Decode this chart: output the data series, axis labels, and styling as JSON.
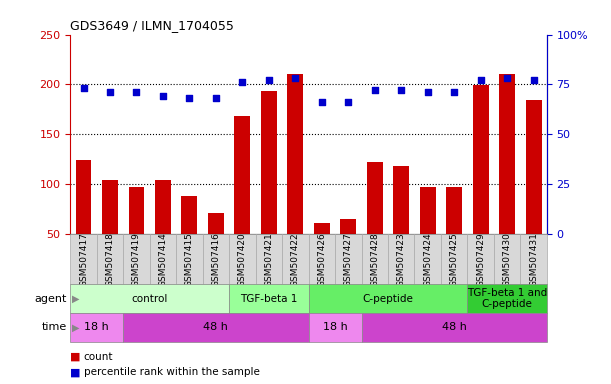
{
  "title": "GDS3649 / ILMN_1704055",
  "samples": [
    "GSM507417",
    "GSM507418",
    "GSM507419",
    "GSM507414",
    "GSM507415",
    "GSM507416",
    "GSM507420",
    "GSM507421",
    "GSM507422",
    "GSM507426",
    "GSM507427",
    "GSM507428",
    "GSM507423",
    "GSM507424",
    "GSM507425",
    "GSM507429",
    "GSM507430",
    "GSM507431"
  ],
  "counts": [
    124,
    104,
    97,
    104,
    88,
    71,
    168,
    193,
    210,
    61,
    65,
    122,
    118,
    97,
    97,
    199,
    210,
    184
  ],
  "percentiles": [
    73,
    71,
    71,
    69,
    68,
    68,
    76,
    77,
    78,
    66,
    66,
    72,
    72,
    71,
    71,
    77,
    78,
    77
  ],
  "bar_color": "#cc0000",
  "dot_color": "#0000cc",
  "ylim_left": [
    50,
    250
  ],
  "ylim_right": [
    0,
    100
  ],
  "yticks_left": [
    50,
    100,
    150,
    200,
    250
  ],
  "yticks_right": [
    0,
    25,
    50,
    75,
    100
  ],
  "agent_groups": [
    {
      "label": "control",
      "start": 0,
      "end": 6,
      "color": "#ccffcc"
    },
    {
      "label": "TGF-beta 1",
      "start": 6,
      "end": 9,
      "color": "#99ff99"
    },
    {
      "label": "C-peptide",
      "start": 9,
      "end": 15,
      "color": "#66ee66"
    },
    {
      "label": "TGF-beta 1 and\nC-peptide",
      "start": 15,
      "end": 18,
      "color": "#33cc33"
    }
  ],
  "time_groups": [
    {
      "label": "18 h",
      "start": 0,
      "end": 2,
      "color": "#ee88ee"
    },
    {
      "label": "48 h",
      "start": 2,
      "end": 9,
      "color": "#cc44cc"
    },
    {
      "label": "18 h",
      "start": 9,
      "end": 11,
      "color": "#ee88ee"
    },
    {
      "label": "48 h",
      "start": 11,
      "end": 18,
      "color": "#cc44cc"
    }
  ],
  "legend_count_color": "#cc0000",
  "legend_pct_color": "#0000cc",
  "tick_bg": "#d8d8d8",
  "agent_label_color": "#888888",
  "time_label_color": "#888888"
}
